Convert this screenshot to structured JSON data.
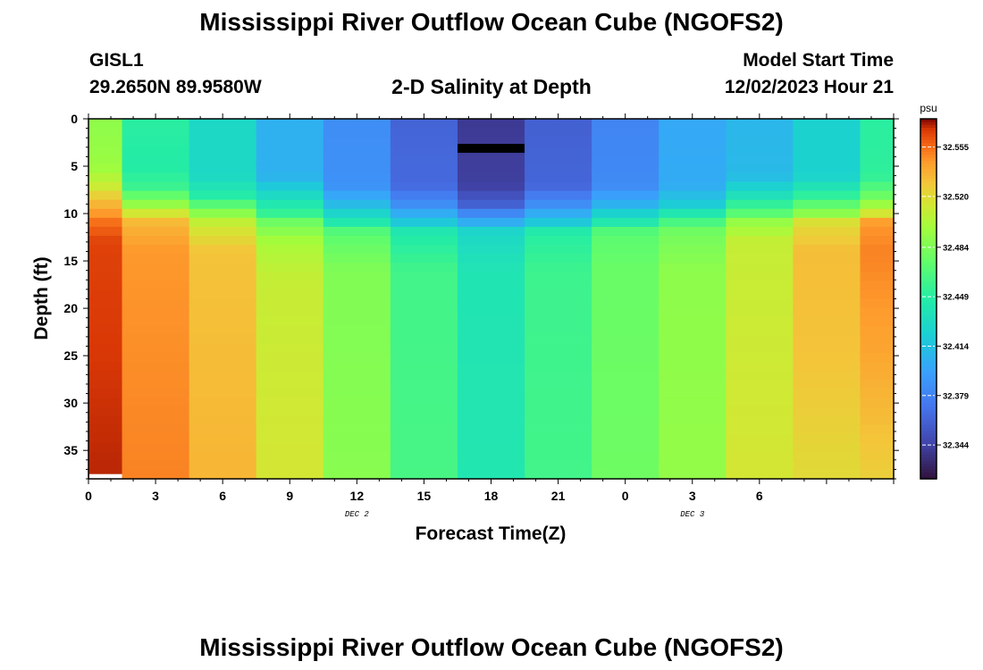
{
  "header": {
    "title": "Mississippi River Outflow Ocean Cube (NGOFS2)",
    "station_name": "GISL1",
    "station_coords": "29.2650N  89.9580W",
    "plot_subtitle": "2-D Salinity at Depth",
    "model_start_label": "Model Start Time",
    "model_start_value": "12/02/2023 Hour 21"
  },
  "footer": {
    "title": "Mississippi River Outflow Ocean Cube (NGOFS2)"
  },
  "chart_data": {
    "type": "heatmap",
    "title": "2-D Salinity at Depth",
    "xlabel": "Forecast Time(Z)",
    "ylabel": "Depth (ft)",
    "x_ticks": [
      "0",
      "3",
      "6",
      "9",
      "12",
      "15",
      "18",
      "21",
      "0",
      "3",
      "6"
    ],
    "date_labels": [
      {
        "text": "DEC 2",
        "after_tick_index": 4
      },
      {
        "text": "DEC 3",
        "after_tick_index": 9
      }
    ],
    "ylim": [
      0,
      38
    ],
    "y_ticks": [
      0,
      5,
      10,
      15,
      20,
      25,
      30,
      35
    ],
    "time_hours": [
      0,
      36
    ],
    "column_times": [
      0,
      1.5,
      4.5,
      7.5,
      10.5,
      13.5,
      16.5,
      19.5,
      22.5,
      25.5,
      28.5,
      31.5,
      34.5,
      36
    ],
    "column_profiles": [
      [
        [
          0,
          32.49
        ],
        [
          5,
          32.495
        ],
        [
          7,
          32.51
        ],
        [
          8.5,
          32.53
        ],
        [
          10,
          32.545
        ],
        [
          11,
          32.555
        ],
        [
          13,
          32.565
        ],
        [
          38,
          32.57
        ]
      ],
      [
        [
          0,
          32.45
        ],
        [
          5,
          32.447
        ],
        [
          7,
          32.455
        ],
        [
          8.5,
          32.48
        ],
        [
          10,
          32.515
        ],
        [
          11,
          32.535
        ],
        [
          14,
          32.545
        ],
        [
          38,
          32.55
        ]
      ],
      [
        [
          0,
          32.43
        ],
        [
          6,
          32.43
        ],
        [
          8,
          32.445
        ],
        [
          10,
          32.49
        ],
        [
          11,
          32.51
        ],
        [
          14,
          32.53
        ],
        [
          38,
          32.535
        ]
      ],
      [
        [
          0,
          32.405
        ],
        [
          6,
          32.405
        ],
        [
          8,
          32.43
        ],
        [
          10,
          32.455
        ],
        [
          11,
          32.48
        ],
        [
          13,
          32.5
        ],
        [
          17,
          32.51
        ],
        [
          38,
          32.515
        ]
      ],
      [
        [
          0,
          32.385
        ],
        [
          7,
          32.387
        ],
        [
          9,
          32.41
        ],
        [
          11,
          32.445
        ],
        [
          12,
          32.47
        ],
        [
          16,
          32.485
        ],
        [
          38,
          32.488
        ]
      ],
      [
        [
          0,
          32.362
        ],
        [
          7,
          32.365
        ],
        [
          9,
          32.385
        ],
        [
          11,
          32.42
        ],
        [
          12,
          32.445
        ],
        [
          16,
          32.46
        ],
        [
          38,
          32.462
        ]
      ],
      [
        [
          0,
          32.34
        ],
        [
          7,
          32.343
        ],
        [
          9,
          32.36
        ],
        [
          11,
          32.405
        ],
        [
          12,
          32.43
        ],
        [
          16,
          32.44
        ],
        [
          38,
          32.442
        ]
      ],
      [
        [
          0,
          32.36
        ],
        [
          7,
          32.363
        ],
        [
          9,
          32.385
        ],
        [
          11,
          32.42
        ],
        [
          12,
          32.448
        ],
        [
          16,
          32.458
        ],
        [
          38,
          32.46
        ]
      ],
      [
        [
          0,
          32.38
        ],
        [
          7,
          32.383
        ],
        [
          9,
          32.405
        ],
        [
          11,
          32.445
        ],
        [
          12,
          32.47
        ],
        [
          16,
          32.476
        ],
        [
          38,
          32.478
        ]
      ],
      [
        [
          0,
          32.4
        ],
        [
          7,
          32.402
        ],
        [
          9,
          32.42
        ],
        [
          11,
          32.465
        ],
        [
          12,
          32.48
        ],
        [
          16,
          32.49
        ],
        [
          38,
          32.492
        ]
      ],
      [
        [
          0,
          32.408
        ],
        [
          6,
          32.41
        ],
        [
          8,
          32.435
        ],
        [
          10,
          32.47
        ],
        [
          11,
          32.495
        ],
        [
          13,
          32.51
        ],
        [
          38,
          32.515
        ]
      ],
      [
        [
          0,
          32.425
        ],
        [
          6,
          32.425
        ],
        [
          8,
          32.45
        ],
        [
          10,
          32.49
        ],
        [
          11,
          32.52
        ],
        [
          14,
          32.532
        ],
        [
          25,
          32.53
        ],
        [
          38,
          32.52
        ]
      ],
      [
        [
          0,
          32.45
        ],
        [
          6,
          32.452
        ],
        [
          8,
          32.475
        ],
        [
          10,
          32.515
        ],
        [
          11,
          32.545
        ],
        [
          14,
          32.55
        ],
        [
          25,
          32.54
        ],
        [
          38,
          32.525
        ]
      ]
    ],
    "colorbar": {
      "units": "psu",
      "min": 32.32,
      "max": 32.575,
      "tick_values": [
        32.344,
        32.379,
        32.414,
        32.449,
        32.484,
        32.52,
        32.555
      ],
      "tick_labels": [
        "32.344",
        "32.379",
        "32.414",
        "32.449",
        "32.484",
        "32.520",
        "32.555"
      ]
    }
  }
}
